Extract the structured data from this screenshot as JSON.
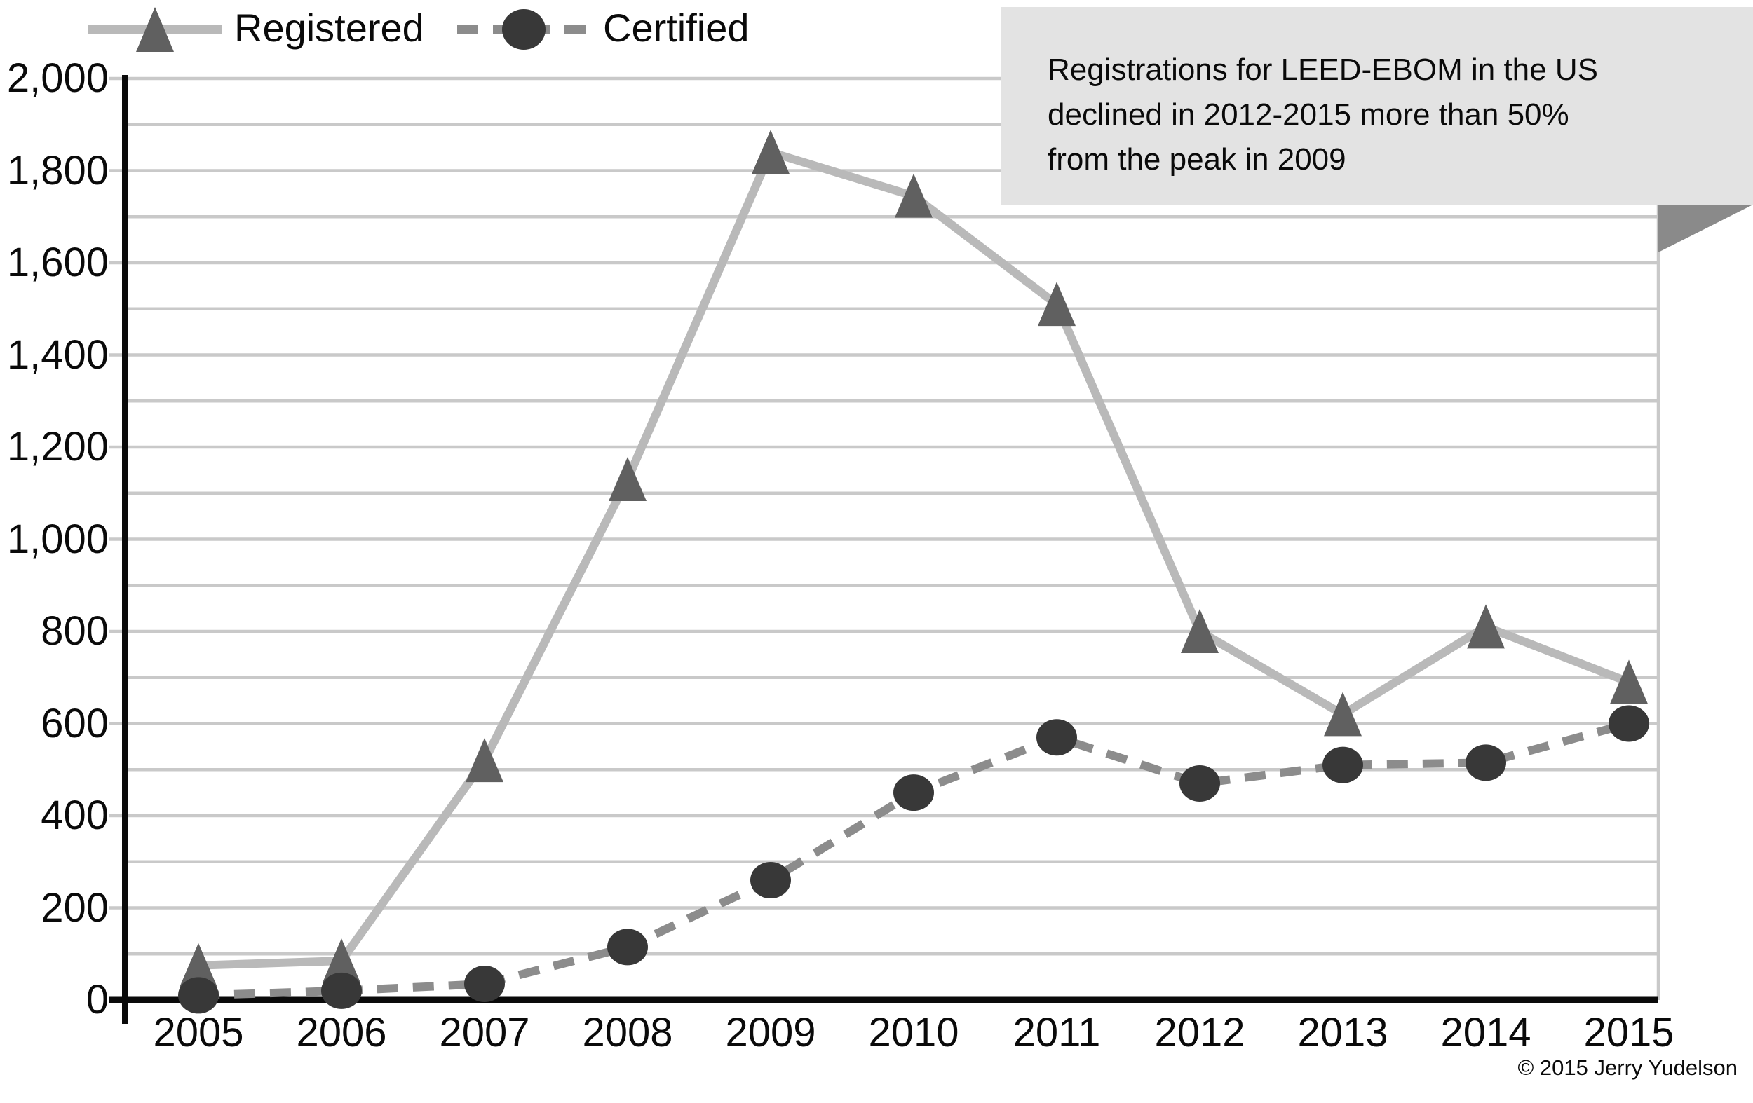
{
  "legend": {
    "items": [
      {
        "label": "Registered",
        "series": "registered"
      },
      {
        "label": "Certified",
        "series": "certified"
      }
    ]
  },
  "annotation": {
    "lines": [
      "Registrations for LEED-EBOM in the US",
      "declined in 2012-2015 more than 50%",
      "from the peak in 2009"
    ]
  },
  "footer": {
    "copyright": "© 2015 Jerry Yudelson"
  },
  "chart_data": {
    "type": "line",
    "title": "",
    "xlabel": "",
    "ylabel": "",
    "categories": [
      "2005",
      "2006",
      "2007",
      "2008",
      "2009",
      "2010",
      "2011",
      "2012",
      "2013",
      "2014",
      "2015"
    ],
    "series": [
      {
        "name": "Registered",
        "marker": "triangle",
        "line_style": "solid",
        "values": [
          75,
          85,
          520,
          1130,
          1840,
          1745,
          1510,
          800,
          620,
          810,
          690
        ]
      },
      {
        "name": "Certified",
        "marker": "circle",
        "line_style": "dashed",
        "values": [
          10,
          20,
          35,
          115,
          260,
          450,
          570,
          470,
          510,
          515,
          600
        ]
      }
    ],
    "ylim": [
      0,
      2000
    ],
    "y_grid_step": 100,
    "y_label_step": 200,
    "y_tick_labels": [
      "0",
      "200",
      "400",
      "600",
      "800",
      "1,000",
      "1,200",
      "1,400",
      "1,600",
      "1,800",
      "2,000"
    ],
    "grid": true,
    "legend_position": "top-left"
  },
  "colors": {
    "registered_line": "#b9b9b9",
    "registered_marker": "#606060",
    "certified_line": "#8c8c8c",
    "certified_marker": "#383838",
    "gridline": "#c9c9c9",
    "axis": "#0a0a0a",
    "annotation_bg": "#e3e3e3",
    "annotation_pointer": "#8a8a8a"
  }
}
